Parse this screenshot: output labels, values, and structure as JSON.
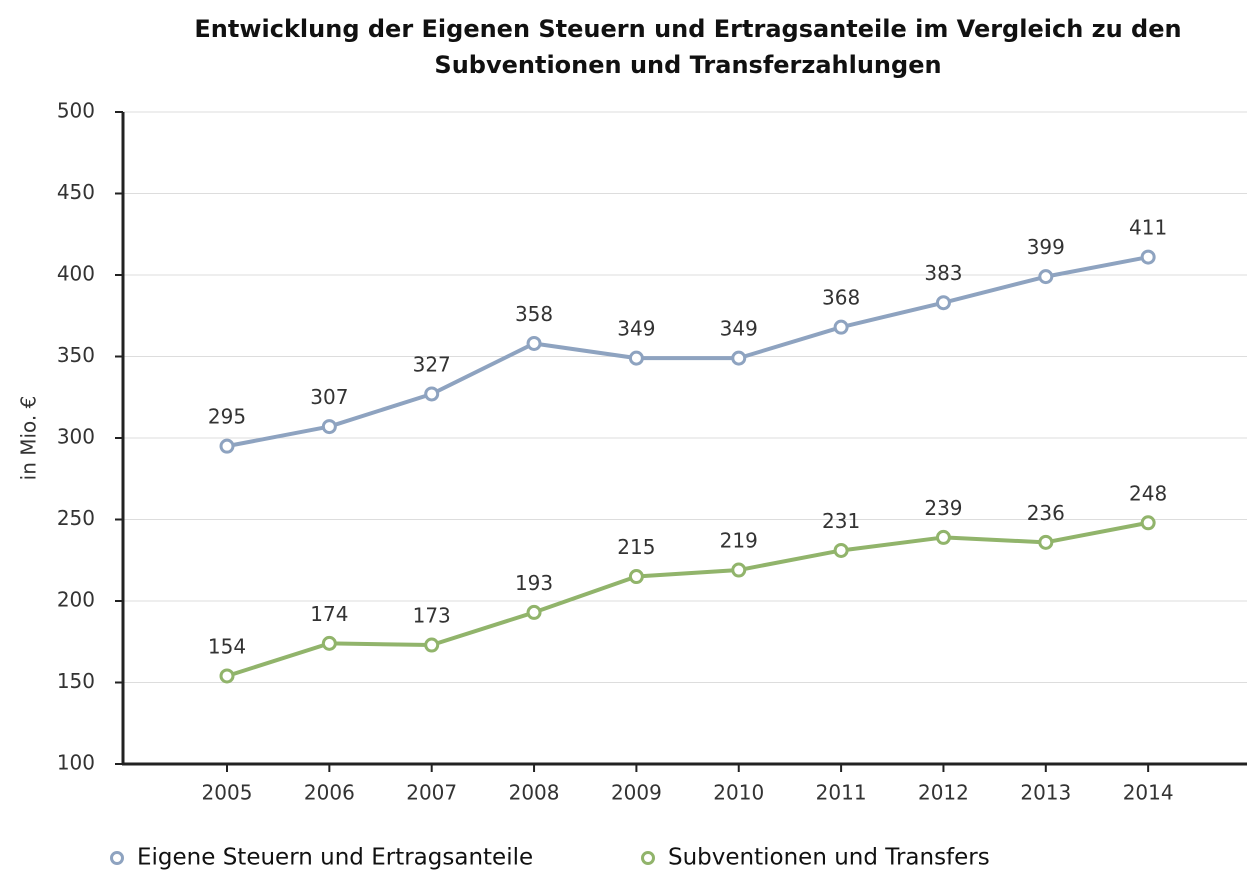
{
  "chart_data": {
    "type": "line",
    "title": [
      "Entwicklung der Eigenen Steuern und Ertragsanteile im Vergleich zu den",
      "Subventionen und Transferzahlungen"
    ],
    "y_label": "in Mio. €",
    "categories": [
      "2005",
      "2006",
      "2007",
      "2008",
      "2009",
      "2010",
      "2011",
      "2012",
      "2013",
      "2014"
    ],
    "series": [
      {
        "name": "Eigene Steuern und Ertragsanteile",
        "color": "#8ea3c0",
        "values": [
          295,
          307,
          327,
          358,
          349,
          349,
          368,
          383,
          399,
          411
        ]
      },
      {
        "name": "Subventionen und Transfers",
        "color": "#91b46b",
        "values": [
          154,
          174,
          173,
          193,
          215,
          219,
          231,
          239,
          236,
          248
        ]
      }
    ],
    "ylim": [
      100,
      500
    ],
    "yticks": [
      100,
      150,
      200,
      250,
      300,
      350,
      400,
      450,
      500
    ],
    "grid": true,
    "legend": "bottom"
  }
}
